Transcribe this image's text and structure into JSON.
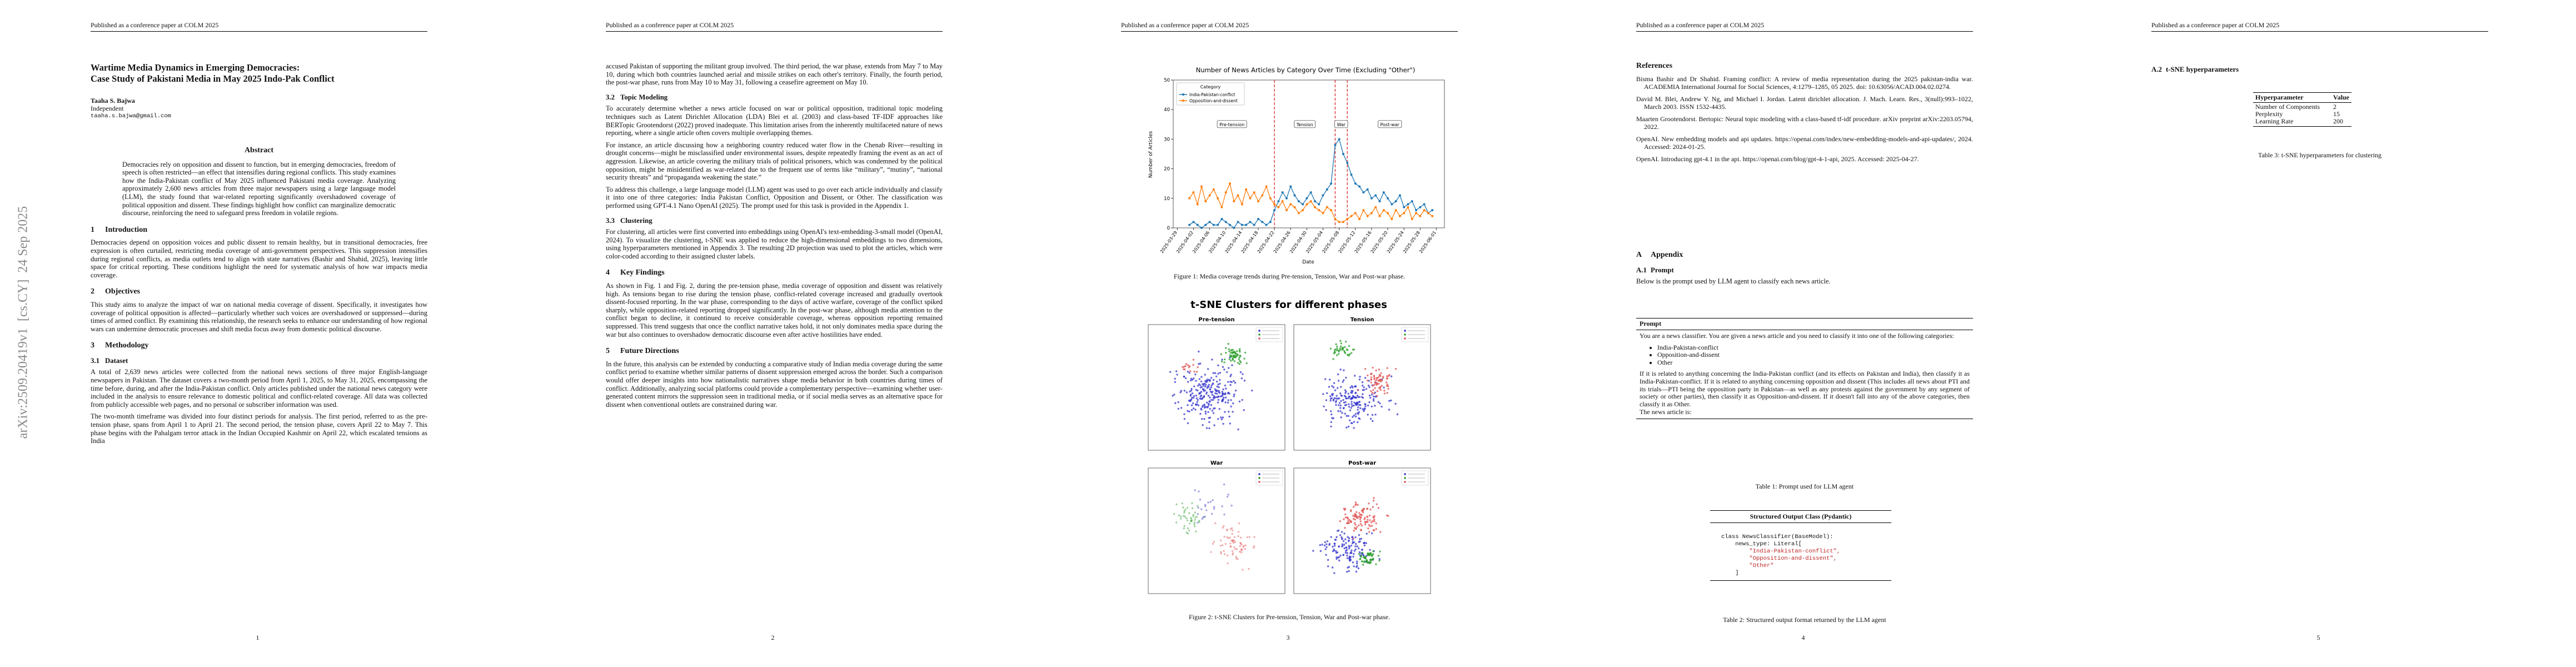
{
  "pages": [
    {
      "header": "Published as a conference paper at COLM 2025",
      "arxiv_id": "arXiv:2509.20419v1  [cs.CY]  24 Sep 2025",
      "title_lines": [
        "Wartime Media Dynamics in Emerging Democracies:",
        "Case Study of Pakistani Media in May 2025 Indo-Pak Conflict"
      ],
      "author": {
        "name": "Taaha S. Bajwa",
        "affiliation": "Independent",
        "email": "taaha.s.bajwa@gmail.com"
      },
      "abstract": {
        "heading": "Abstract",
        "text": "Democracies rely on opposition and dissent to function, but in emerging democracies, freedom of speech is often restricted—an effect that intensifies during regional conflicts. This study examines how the India-Pakistan conflict of May 2025 influenced Pakistani media coverage. Analyzing approximately 2,600 news articles from three major newspapers using a large language model (LLM), the study found that war-related reporting significantly overshadowed coverage of political opposition and dissent. These findings highlight how conflict can marginalize democratic discourse, reinforcing the need to safeguard press freedom in volatile regions."
      },
      "sections": [
        {
          "number": "1",
          "title": "Introduction",
          "paragraphs": [
            "Democracies depend on opposition voices and public dissent to remain healthy, but in transitional democracies, free expression is often curtailed, restricting media coverage of anti-government perspectives. This suppression intensifies during regional conflicts, as media outlets tend to align with state narratives (Bashir and Shahid, 2025), leaving little space for critical reporting. These conditions highlight the need for systematic analysis of how war impacts media coverage."
          ]
        },
        {
          "number": "2",
          "title": "Objectives",
          "paragraphs": [
            "This study aims to analyze the impact of war on national media coverage of dissent. Specifically, it investigates how coverage of political opposition is affected—particularly whether such voices are overshadowed or suppressed—during times of armed conflict. By examining this relationship, the research seeks to enhance our understanding of how regional wars can undermine democratic processes and shift media focus away from domestic political discourse."
          ]
        },
        {
          "number": "3",
          "title": "Methodology"
        },
        {
          "number": "3.1",
          "title": "Dataset",
          "paragraphs": [
            "A total of 2,639 news articles were collected from the national news sections of three major English-language newspapers in Pakistan. The dataset covers a two-month period from April 1, 2025, to May 31, 2025, encompassing the time before, during, and after the India-Pakistan conflict. Only articles published under the national news category were included in the analysis to ensure relevance to domestic political and conflict-related coverage. All data was collected from publicly accessible web pages, and no personal or subscriber information was used.",
            "The two-month timeframe was divided into four distinct periods for analysis. The first period, referred to as the pre-tension phase, spans from April 1 to April 21. The second period, the tension phase, covers April 22 to May 7. This phase begins with the Pahalgam terror attack in the Indian Occupied Kashmir on April 22, which escalated tensions as India"
          ]
        }
      ],
      "page_number": 1
    },
    {
      "header": "Published as a conference paper at COLM 2025",
      "continuation": "accused Pakistan of supporting the militant group involved. The third period, the war phase, extends from May 7 to May 10, during which both countries launched aerial and missile strikes on each other's territory. Finally, the fourth period, the post-war phase, runs from May 10 to May 31, following a ceasefire agreement on May 10.",
      "sections": [
        {
          "number": "3.2",
          "title": "Topic Modeling",
          "paragraphs": [
            "To accurately determine whether a news article focused on war or political opposition, traditional topic modeling techniques such as Latent Dirichlet Allocation (LDA) Blei et al. (2003) and class-based TF-IDF approaches like BERTopic Grootendorst (2022) proved inadequate. This limitation arises from the inherently multifaceted nature of news reporting, where a single article often covers multiple overlapping themes.",
            "For instance, an article discussing how a neighboring country reduced water flow in the Chenab River—resulting in drought concerns—might be misclassified under environmental issues, despite repeatedly framing the event as an act of aggression. Likewise, an article covering the military trials of political prisoners, which was condemned by the political opposition, might be misidentified as war-related due to the frequent use of terms like “military”, “mutiny”, “national security threats” and “propaganda weakening the state.”",
            "To address this challenge, a large language model (LLM) agent was used to go over each article individually and classify it into one of three categories: India Pakistan Conflict, Opposition and Dissent, or Other. The classification was performed using GPT-4.1 Nano OpenAI (2025). The prompt used for this task is provided in the Appendix 1."
          ]
        },
        {
          "number": "3.3",
          "title": "Clustering",
          "paragraphs": [
            "For clustering, all articles were first converted into embeddings using OpenAI's text-embedding-3-small model (OpenAI, 2024). To visualize the clustering, t-SNE was applied to reduce the high-dimensional embeddings to two dimensions, using hyperparameters mentioned in Appendix 3. The resulting 2D projection was used to plot the articles, which were color-coded according to their assigned cluster labels."
          ]
        },
        {
          "number": "4",
          "title": "Key Findings",
          "paragraphs": [
            "As shown in Fig. 1 and Fig. 2, during the pre-tension phase, media coverage of opposition and dissent was relatively high. As tensions began to rise during the tension phase, conflict-related coverage increased and gradually overtook dissent-focused reporting. In the war phase, corresponding to the days of active warfare, coverage of the conflict spiked sharply, while opposition-related reporting dropped significantly. In the post-war phase, although media attention to the conflict began to decline, it continued to receive considerable coverage, whereas opposition reporting remained suppressed. This trend suggests that once the conflict narrative takes hold, it not only dominates media space during the war but also continues to overshadow democratic discourse even after active hostilities have ended."
          ]
        },
        {
          "number": "5",
          "title": "Future Directions",
          "paragraphs": [
            "In the future, this analysis can be extended by conducting a comparative study of Indian media coverage during the same conflict period to examine whether similar patterns of dissent suppression emerged across the border. Such a comparison would offer deeper insights into how nationalistic narratives shape media behavior in both countries during times of conflict. Additionally, analyzing social platforms could provide a complementary perspective—examining whether user-generated content mirrors the suppression seen in traditional media, or if social media serves as an alternative space for dissent when conventional outlets are constrained during war."
          ]
        }
      ],
      "page_number": 2
    },
    {
      "header": "Published as a conference paper at COLM 2025",
      "figure_1_caption": "Figure 1: Media coverage trends during Pre-tension, Tension, War and Post-war phase.",
      "figure_2": {
        "title": "t-SNE Clusters for different phases",
        "panels": [
          "Pre-tension",
          "Tension",
          "War",
          "Post-war"
        ],
        "caption": "Figure 2: t-SNE Clusters for Pre-tension, Tension, War and Post-war phase."
      },
      "page_number": 3
    },
    {
      "header": "Published as a conference paper at COLM 2025",
      "references_heading": "References",
      "references": [
        "Bisma Bashir and Dr Shahid. Framing conflict: A review of media representation during the 2025 pakistan-india war. ACADEMIA International Journal for Social Sciences, 4:1279–1285, 05 2025. doi: 10.63056/ACAD.004.02.0274.",
        "David M. Blei, Andrew Y. Ng, and Michael I. Jordan. Latent dirichlet allocation. J. Mach. Learn. Res., 3(null):993–1022, March 2003. ISSN 1532-4435.",
        "Maarten Grootendorst. Bertopic: Neural topic modeling with a class-based tf-idf procedure. arXiv preprint arXiv:2203.05794, 2022.",
        "OpenAI. New embedding models and api updates. https://openai.com/index/new-embedding-models-and-api-updates/, 2024. Accessed: 2024-01-25.",
        "OpenAI. Introducing gpt-4.1 in the api. https://openai.com/blog/gpt-4-1-api, 2025. Accessed: 2025-04-27."
      ],
      "appendix": {
        "number": "A",
        "title": "Appendix",
        "sub_number": "A.1",
        "sub_title": "Prompt",
        "intro": "Below is the prompt used by LLM agent to classify each news article."
      },
      "prompt_table": {
        "header": "Prompt",
        "lead": "You are a news classifier. You are given a news article and you need to classify it into one of the following categories:",
        "items": [
          "India-Pakistan-conflict",
          "Opposition-and-dissent",
          "Other"
        ],
        "rules": "If it is related to anything concerning the India-Pakistan conflict (and its effects on Pakistan and India), then classify it as India-Pakistan-conflict. If it is related to anything concerning opposition and dissent (This includes all news about PTI and its trials—PTI being the opposition party in Pakistan—as well as any protests against the government by any segment of society or other parties), then classify it as Opposition-and-dissent. If it doesn't fall into any of the above categories, then classify it as Other.",
        "tail": "The news article is:",
        "caption": "Table 1: Prompt used for LLM agent"
      },
      "output_table": {
        "header": "Structured Output Class (Pydantic)",
        "code": [
          "class NewsClassifier(BaseModel):",
          "    news_type: Literal[",
          "        \"India-Pakistan-conflict\",",
          "        \"Opposition-and-dissent\",",
          "        \"Other\"",
          "    ]"
        ],
        "caption": "Table 2: Structured output format returned by the LLM agent"
      },
      "page_number": 4
    },
    {
      "header": "Published as a conference paper at COLM 2025",
      "heading_number": "A.2",
      "heading_title": "t-SNE hyperparameters",
      "table": {
        "columns": [
          "Hyperparameter",
          "Value"
        ],
        "rows": [
          [
            "Number of Components",
            2
          ],
          [
            "Perplexity",
            15
          ],
          [
            "Learning Rate",
            200
          ]
        ]
      },
      "caption": "Table 3: t-SNE hyperparameters for clustering",
      "page_number": 5
    }
  ],
  "chart_data": {
    "type": "line",
    "title": "Number of News Articles by Category Over Time (Excluding \"Other\")",
    "x_label": "Date",
    "y_label": "Number of Articles",
    "legend_title": "Category",
    "legend": "upper left",
    "grid": false,
    "x": [
      "2025-04-01",
      "2025-04-02",
      "2025-04-03",
      "2025-04-04",
      "2025-04-05",
      "2025-04-06",
      "2025-04-07",
      "2025-04-08",
      "2025-04-09",
      "2025-04-10",
      "2025-04-11",
      "2025-04-12",
      "2025-04-13",
      "2025-04-14",
      "2025-04-15",
      "2025-04-16",
      "2025-04-17",
      "2025-04-18",
      "2025-04-19",
      "2025-04-20",
      "2025-04-21",
      "2025-04-22",
      "2025-04-23",
      "2025-04-24",
      "2025-04-25",
      "2025-04-26",
      "2025-04-27",
      "2025-04-28",
      "2025-04-29",
      "2025-04-30",
      "2025-05-01",
      "2025-05-02",
      "2025-05-03",
      "2025-05-04",
      "2025-05-05",
      "2025-05-06",
      "2025-05-07",
      "2025-05-08",
      "2025-05-09",
      "2025-05-10",
      "2025-05-11",
      "2025-05-12",
      "2025-05-13",
      "2025-05-14",
      "2025-05-15",
      "2025-05-16",
      "2025-05-17",
      "2025-05-18",
      "2025-05-19",
      "2025-05-20",
      "2025-05-21",
      "2025-05-22",
      "2025-05-23",
      "2025-05-24",
      "2025-05-25",
      "2025-05-26",
      "2025-05-27",
      "2025-05-28",
      "2025-05-29",
      "2025-05-30",
      "2025-05-31"
    ],
    "series": [
      {
        "name": "India-Pakistan-conflict",
        "color": "#1f77b4",
        "values": [
          1,
          2,
          1,
          0,
          1,
          2,
          1,
          1,
          3,
          2,
          1,
          0,
          2,
          1,
          1,
          2,
          1,
          3,
          2,
          1,
          2,
          6,
          9,
          12,
          10,
          14,
          11,
          9,
          8,
          10,
          12,
          9,
          8,
          11,
          13,
          15,
          28,
          30,
          25,
          22,
          18,
          15,
          14,
          12,
          13,
          10,
          11,
          9,
          12,
          10,
          8,
          9,
          11,
          7,
          8,
          9,
          6,
          7,
          8,
          5,
          6
        ]
      },
      {
        "name": "Opposition-and-dissent",
        "color": "#ff7f0e",
        "values": [
          10,
          12,
          8,
          14,
          9,
          11,
          13,
          10,
          7,
          12,
          15,
          9,
          11,
          8,
          13,
          10,
          12,
          9,
          11,
          14,
          10,
          8,
          7,
          9,
          6,
          8,
          7,
          5,
          6,
          8,
          9,
          7,
          6,
          5,
          7,
          6,
          3,
          2,
          2,
          3,
          4,
          5,
          3,
          6,
          4,
          5,
          7,
          4,
          6,
          5,
          3,
          6,
          4,
          5,
          7,
          3,
          5,
          4,
          6,
          5,
          4
        ]
      }
    ],
    "xlim": [
      "2025-03-28",
      "2025-06-03"
    ],
    "xticks": [
      "2025-03-29",
      "2025-04-02",
      "2025-04-06",
      "2025-04-10",
      "2025-04-14",
      "2025-04-18",
      "2025-04-22",
      "2025-04-26",
      "2025-04-30",
      "2025-05-04",
      "2025-05-08",
      "2025-05-12",
      "2025-05-16",
      "2025-05-20",
      "2025-05-24",
      "2025-05-28",
      "2025-06-01"
    ],
    "ylim": [
      0,
      50
    ],
    "yticks": [
      0,
      10,
      20,
      30,
      40,
      50
    ],
    "phase_lines": [
      "2025-04-22",
      "2025-05-07",
      "2025-05-10"
    ],
    "phase_line_color": "#d62728",
    "phase_labels": [
      "Pre-tension",
      "Tension",
      "War",
      "Post-war"
    ]
  }
}
